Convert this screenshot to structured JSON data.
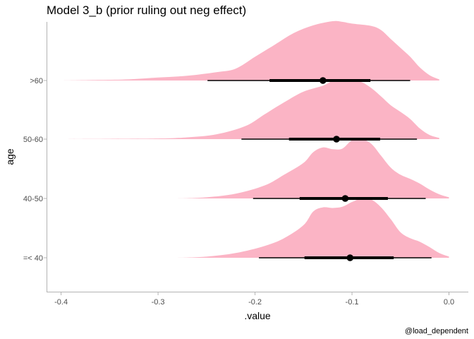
{
  "chart_data": {
    "type": "density-ridges-with-interval",
    "title": "Model 3_b (prior ruling out neg effect)",
    "xlabel": ".value",
    "ylabel": "age",
    "caption": "@load_dependent",
    "xlim": [
      -0.415,
      0.02
    ],
    "x_ticks": [
      -0.4,
      -0.3,
      -0.2,
      -0.1,
      0.0
    ],
    "x_tick_labels": [
      "-0.4",
      "-0.3",
      "-0.2",
      "-0.1",
      "0.0"
    ],
    "categories": [
      "=< 40",
      "40-50",
      "50-60",
      ">60"
    ],
    "fill_color": "#FBB4C5",
    "interval_color": "#000000",
    "grid": false,
    "series": [
      {
        "category": "=< 40",
        "point": -0.102,
        "interval_66": [
          -0.149,
          -0.057
        ],
        "interval_95": [
          -0.196,
          -0.018
        ],
        "density": [
          [
            -0.28,
            0.0
          ],
          [
            -0.25,
            0.02
          ],
          [
            -0.22,
            0.08
          ],
          [
            -0.19,
            0.2
          ],
          [
            -0.17,
            0.33
          ],
          [
            -0.15,
            0.55
          ],
          [
            -0.14,
            0.78
          ],
          [
            -0.13,
            0.85
          ],
          [
            -0.12,
            0.84
          ],
          [
            -0.11,
            0.86
          ],
          [
            -0.1,
            0.94
          ],
          [
            -0.09,
            1.0
          ],
          [
            -0.08,
            0.98
          ],
          [
            -0.07,
            0.85
          ],
          [
            -0.06,
            0.65
          ],
          [
            -0.05,
            0.43
          ],
          [
            -0.04,
            0.33
          ],
          [
            -0.03,
            0.27
          ],
          [
            -0.02,
            0.18
          ],
          [
            -0.01,
            0.08
          ],
          [
            0.0,
            0.02
          ]
        ]
      },
      {
        "category": "40-50",
        "point": -0.107,
        "interval_66": [
          -0.154,
          -0.063
        ],
        "interval_95": [
          -0.202,
          -0.024
        ],
        "density": [
          [
            -0.28,
            0.0
          ],
          [
            -0.25,
            0.02
          ],
          [
            -0.22,
            0.08
          ],
          [
            -0.19,
            0.22
          ],
          [
            -0.17,
            0.4
          ],
          [
            -0.15,
            0.6
          ],
          [
            -0.14,
            0.78
          ],
          [
            -0.13,
            0.86
          ],
          [
            -0.12,
            0.83
          ],
          [
            -0.11,
            0.84
          ],
          [
            -0.1,
            0.98
          ],
          [
            -0.09,
            1.0
          ],
          [
            -0.08,
            0.92
          ],
          [
            -0.07,
            0.72
          ],
          [
            -0.06,
            0.52
          ],
          [
            -0.05,
            0.4
          ],
          [
            -0.04,
            0.33
          ],
          [
            -0.03,
            0.25
          ],
          [
            -0.02,
            0.15
          ],
          [
            -0.01,
            0.07
          ],
          [
            0.0,
            0.02
          ]
        ]
      },
      {
        "category": "50-60",
        "point": -0.116,
        "interval_66": [
          -0.165,
          -0.071
        ],
        "interval_95": [
          -0.214,
          -0.033
        ],
        "density": [
          [
            -0.4,
            0.0
          ],
          [
            -0.35,
            0.005
          ],
          [
            -0.3,
            0.01
          ],
          [
            -0.27,
            0.03
          ],
          [
            -0.24,
            0.08
          ],
          [
            -0.21,
            0.22
          ],
          [
            -0.19,
            0.42
          ],
          [
            -0.17,
            0.62
          ],
          [
            -0.15,
            0.8
          ],
          [
            -0.13,
            0.9
          ],
          [
            -0.12,
            0.98
          ],
          [
            -0.11,
            1.0
          ],
          [
            -0.1,
            0.98
          ],
          [
            -0.09,
            0.96
          ],
          [
            -0.08,
            0.86
          ],
          [
            -0.07,
            0.72
          ],
          [
            -0.06,
            0.57
          ],
          [
            -0.05,
            0.46
          ],
          [
            -0.04,
            0.34
          ],
          [
            -0.03,
            0.18
          ],
          [
            -0.02,
            0.07
          ],
          [
            -0.01,
            0.02
          ]
        ]
      },
      {
        "category": ">60",
        "point": -0.13,
        "interval_66": [
          -0.185,
          -0.081
        ],
        "interval_95": [
          -0.249,
          -0.04
        ],
        "density": [
          [
            -0.4,
            0.0
          ],
          [
            -0.36,
            0.01
          ],
          [
            -0.33,
            0.02
          ],
          [
            -0.3,
            0.05
          ],
          [
            -0.27,
            0.08
          ],
          [
            -0.24,
            0.14
          ],
          [
            -0.22,
            0.2
          ],
          [
            -0.2,
            0.4
          ],
          [
            -0.18,
            0.6
          ],
          [
            -0.16,
            0.8
          ],
          [
            -0.14,
            0.93
          ],
          [
            -0.12,
            1.0
          ],
          [
            -0.11,
            0.99
          ],
          [
            -0.1,
            0.96
          ],
          [
            -0.08,
            0.92
          ],
          [
            -0.07,
            0.85
          ],
          [
            -0.06,
            0.7
          ],
          [
            -0.05,
            0.55
          ],
          [
            -0.04,
            0.4
          ],
          [
            -0.03,
            0.22
          ],
          [
            -0.02,
            0.09
          ],
          [
            -0.01,
            0.02
          ]
        ]
      }
    ]
  }
}
